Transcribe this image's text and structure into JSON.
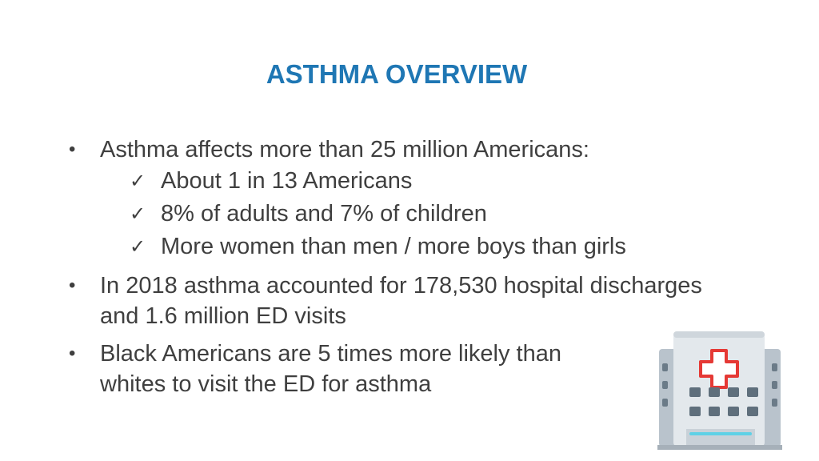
{
  "slide": {
    "title": "ASTHMA OVERVIEW",
    "bullets": [
      {
        "text": "Asthma affects more than 25 million Americans:",
        "subitems": [
          "About 1 in 13 Americans",
          "8% of adults and 7% of children",
          "More women than men / more boys than girls"
        ]
      },
      {
        "text": "In 2018 asthma accounted for 178,530 hospital discharges and 1.6 million ED visits"
      },
      {
        "text": "Black Americans are 5 times more likely than whites to visit the ED for asthma"
      }
    ],
    "bullet_glyph": "•",
    "check_glyph": "✓",
    "icon": "hospital-icon"
  }
}
